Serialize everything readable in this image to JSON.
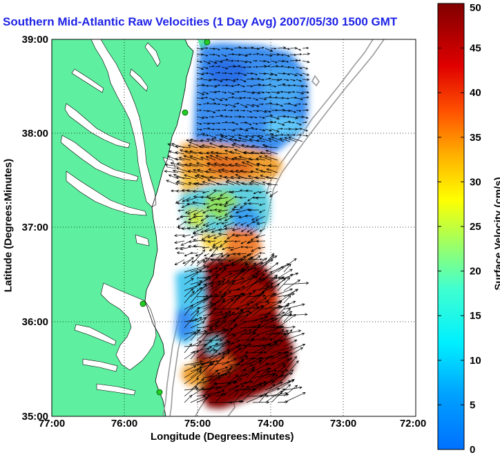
{
  "map": {
    "title": "Southern Mid-Atlantic Raw Velocities (1 Day Avg) 2007/05/30 1500 GMT",
    "lon_label": "Longitude (Degrees:Minutes)",
    "lat_label": "Latitude (Degrees:Minutes)",
    "lon_ticks": [
      "77:00",
      "76:00",
      "75:00",
      "74:00",
      "73:00",
      "72:00"
    ],
    "lat_ticks": [
      "39:00",
      "38:00",
      "37:00",
      "36:00",
      "35:00"
    ],
    "lon_range": [
      -77,
      -72
    ],
    "lat_range": [
      35,
      39
    ],
    "grid": "dotted",
    "colors": {
      "land": "#5ef0a0",
      "ocean": "#ffffff",
      "title": "#1e22e6",
      "station": "#22cc22"
    }
  },
  "colorbar": {
    "label": "Surface Velocity (cm/s)",
    "ticks": [
      "0",
      "5",
      "10",
      "15",
      "20",
      "25",
      "30",
      "35",
      "40",
      "45",
      "50"
    ],
    "range": [
      0,
      50
    ],
    "colormap": "jet"
  }
}
